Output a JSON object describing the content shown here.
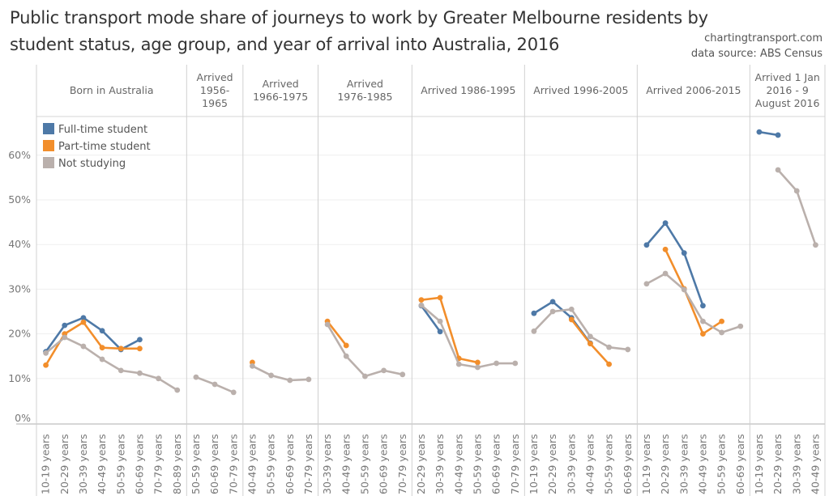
{
  "title_line1": "Public transport mode share of journeys to work by Greater Melbourne residents by",
  "title_line2": "student status, age group, and year of arrival into Australia, 2016",
  "credit_site": "chartingtransport.com",
  "credit_source": "data source: ABS Census",
  "chart_data": {
    "type": "line",
    "title": "Public transport mode share of journeys to work by Greater Melbourne residents by student status, age group, and year of arrival into Australia, 2016",
    "ylabel": "",
    "ylim": [
      0,
      68
    ],
    "yticks": [
      "0%",
      "10%",
      "20%",
      "30%",
      "40%",
      "50%",
      "60%"
    ],
    "grid": true,
    "legend_position": "top-left",
    "legend": [
      {
        "name": "Full-time student",
        "color": "#4e79a7"
      },
      {
        "name": "Part-time student",
        "color": "#f28e2b"
      },
      {
        "name": "Not studying",
        "color": "#bab0ac"
      }
    ],
    "panels": [
      {
        "header": [
          "Born in Australia"
        ],
        "categories": [
          "10-19 years",
          "20-29 years",
          "30-39 years",
          "40-49 years",
          "50-59 years",
          "60-69 years",
          "70-79 years",
          "80-89 years"
        ],
        "series": [
          {
            "name": "Full-time student",
            "values": [
              16.0,
              21.9,
              23.6,
              20.7,
              16.5,
              18.7,
              null,
              null
            ]
          },
          {
            "name": "Part-time student",
            "values": [
              13.0,
              20.0,
              22.6,
              16.9,
              16.7,
              16.7,
              null,
              null
            ]
          },
          {
            "name": "Not studying",
            "values": [
              15.7,
              19.2,
              17.2,
              14.3,
              11.8,
              11.2,
              10.0,
              7.4
            ]
          }
        ]
      },
      {
        "header": [
          "Arrived",
          "1956-",
          "1965"
        ],
        "categories": [
          "50-59 years",
          "60-69 years",
          "70-79 years"
        ],
        "series": [
          {
            "name": "Full-time student",
            "values": [
              null,
              null,
              null
            ]
          },
          {
            "name": "Part-time student",
            "values": [
              null,
              null,
              null
            ]
          },
          {
            "name": "Not studying",
            "values": [
              10.3,
              8.7,
              6.9
            ]
          }
        ]
      },
      {
        "header": [
          "Arrived",
          "1966-1975"
        ],
        "categories": [
          "40-49 years",
          "50-59 years",
          "60-69 years",
          "70-79 years"
        ],
        "series": [
          {
            "name": "Full-time student",
            "values": [
              null,
              null,
              null,
              null
            ]
          },
          {
            "name": "Part-time student",
            "values": [
              13.6,
              null,
              null,
              null
            ]
          },
          {
            "name": "Not studying",
            "values": [
              12.8,
              10.7,
              9.6,
              9.8
            ]
          }
        ]
      },
      {
        "header": [
          "Arrived",
          "1976-1985"
        ],
        "categories": [
          "30-39 years",
          "40-49 years",
          "50-59 years",
          "60-69 years",
          "70-79 years"
        ],
        "series": [
          {
            "name": "Full-time student",
            "values": [
              null,
              null,
              null,
              null,
              null
            ]
          },
          {
            "name": "Part-time student",
            "values": [
              22.8,
              17.4,
              null,
              null,
              null
            ]
          },
          {
            "name": "Not studying",
            "values": [
              22.1,
              15.0,
              10.5,
              11.8,
              10.9
            ]
          }
        ]
      },
      {
        "header": [
          "Arrived 1986-1995"
        ],
        "categories": [
          "20-29 years",
          "30-39 years",
          "40-49 years",
          "50-59 years",
          "60-69 years",
          "70-79 years"
        ],
        "series": [
          {
            "name": "Full-time student",
            "values": [
              26.3,
              20.5,
              null,
              null,
              null,
              null
            ]
          },
          {
            "name": "Part-time student",
            "values": [
              27.6,
              28.1,
              14.5,
              13.6,
              null,
              null
            ]
          },
          {
            "name": "Not studying",
            "values": [
              26.4,
              22.8,
              13.2,
              12.5,
              13.4,
              13.4
            ]
          }
        ]
      },
      {
        "header": [
          "Arrived 1996-2005"
        ],
        "categories": [
          "10-19 years",
          "20-29 years",
          "30-39 years",
          "40-49 years",
          "50-59 years",
          "60-69 years"
        ],
        "series": [
          {
            "name": "Full-time student",
            "values": [
              24.6,
              27.2,
              23.6,
              17.9,
              null,
              null
            ]
          },
          {
            "name": "Part-time student",
            "values": [
              null,
              null,
              23.2,
              17.8,
              13.2,
              null
            ]
          },
          {
            "name": "Not studying",
            "values": [
              20.6,
              25.0,
              25.5,
              19.4,
              17.0,
              16.5
            ]
          }
        ]
      },
      {
        "header": [
          "Arrived 2006-2015"
        ],
        "categories": [
          "10-19 years",
          "20-29 years",
          "30-39 years",
          "40-49 years",
          "50-59 years",
          "60-69 years"
        ],
        "series": [
          {
            "name": "Full-time student",
            "values": [
              39.9,
              44.8,
              38.1,
              26.3,
              null,
              null
            ]
          },
          {
            "name": "Part-time student",
            "values": [
              null,
              38.9,
              30.1,
              20.0,
              22.8,
              null
            ]
          },
          {
            "name": "Not studying",
            "values": [
              31.2,
              33.5,
              29.9,
              22.8,
              20.3,
              21.7
            ]
          }
        ]
      },
      {
        "header": [
          "Arrived 1 Jan",
          "2016 - 9",
          "August 2016"
        ],
        "categories": [
          "10-19 years",
          "20-29 years",
          "30-39 years",
          "40-49 years"
        ],
        "series": [
          {
            "name": "Full-time student",
            "values": [
              65.2,
              64.5,
              null,
              null
            ]
          },
          {
            "name": "Part-time student",
            "values": [
              null,
              null,
              null,
              null
            ]
          },
          {
            "name": "Not studying",
            "values": [
              null,
              56.7,
              52.0,
              39.9
            ]
          }
        ]
      }
    ]
  }
}
